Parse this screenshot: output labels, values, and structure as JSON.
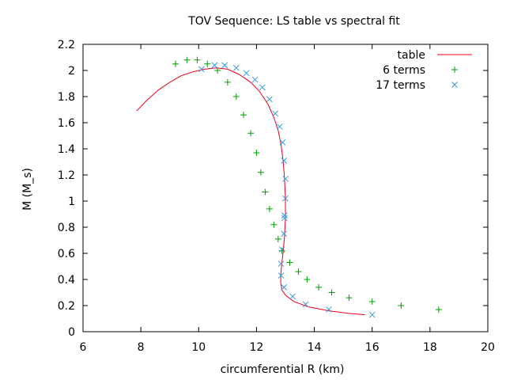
{
  "chart_data": {
    "type": "line",
    "title": "TOV Sequence: LS table vs spectral fit",
    "xlabel": "circumferential R (km)",
    "ylabel": "M (M_s)",
    "xlim": [
      6,
      20
    ],
    "ylim": [
      0,
      2.2
    ],
    "xticks": [
      "6",
      "8",
      "10",
      "12",
      "14",
      "16",
      "18",
      "20"
    ],
    "yticks": [
      "0",
      "0.2",
      "0.4",
      "0.6",
      "0.8",
      "1",
      "1.2",
      "1.4",
      "1.6",
      "1.8",
      "2",
      "2.2"
    ],
    "grid": false,
    "legend_position": "top-right",
    "series": [
      {
        "name": "table",
        "style": "line",
        "color": "#e8001c",
        "x": [
          7.85,
          8.2,
          8.6,
          9.0,
          9.4,
          9.8,
          10.2,
          10.6,
          11.0,
          11.4,
          11.8,
          12.1,
          12.4,
          12.6,
          12.75,
          12.85,
          12.92,
          12.97,
          13.0,
          13.0,
          12.97,
          12.92,
          12.87,
          12.84,
          12.84,
          12.88,
          13.0,
          13.3,
          13.8,
          14.5,
          15.2,
          15.75
        ],
        "y": [
          1.69,
          1.77,
          1.85,
          1.91,
          1.96,
          1.99,
          2.01,
          2.02,
          2.01,
          1.97,
          1.91,
          1.84,
          1.74,
          1.64,
          1.54,
          1.43,
          1.31,
          1.17,
          1.02,
          0.87,
          0.73,
          0.61,
          0.51,
          0.43,
          0.37,
          0.32,
          0.28,
          0.23,
          0.19,
          0.16,
          0.14,
          0.13
        ]
      },
      {
        "name": "6 terms",
        "style": "plus",
        "color": "#009e00",
        "x": [
          9.2,
          9.6,
          9.95,
          10.3,
          10.65,
          11.0,
          11.3,
          11.55,
          11.8,
          12.0,
          12.15,
          12.3,
          12.45,
          12.6,
          12.75,
          12.88,
          13.15,
          13.45,
          13.75,
          14.15,
          14.6,
          15.2,
          16.0,
          17.0,
          18.3
        ],
        "y": [
          2.05,
          2.08,
          2.08,
          2.05,
          2.0,
          1.91,
          1.8,
          1.66,
          1.52,
          1.37,
          1.22,
          1.07,
          0.94,
          0.82,
          0.71,
          0.62,
          0.53,
          0.46,
          0.4,
          0.34,
          0.3,
          0.26,
          0.23,
          0.2,
          0.17
        ]
      },
      {
        "name": "17 terms",
        "style": "cross",
        "color": "#3399dd",
        "x": [
          10.1,
          10.55,
          10.9,
          11.3,
          11.65,
          11.95,
          12.2,
          12.45,
          12.65,
          12.8,
          12.9,
          12.95,
          13.0,
          13.0,
          12.97,
          12.97,
          12.95,
          12.88,
          12.85,
          12.85,
          12.95,
          13.25,
          13.7,
          14.5,
          16.0
        ],
        "y": [
          2.01,
          2.04,
          2.04,
          2.02,
          1.98,
          1.93,
          1.87,
          1.78,
          1.67,
          1.57,
          1.45,
          1.31,
          1.17,
          1.02,
          0.89,
          0.87,
          0.75,
          0.63,
          0.52,
          0.43,
          0.34,
          0.27,
          0.21,
          0.17,
          0.13
        ]
      }
    ]
  }
}
